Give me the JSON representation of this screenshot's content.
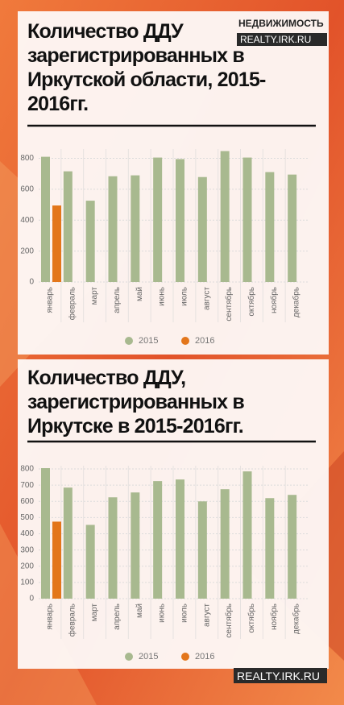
{
  "brand": {
    "name": "НЕДВИЖИМОСТЬ",
    "url": "REALTY.IRK.RU"
  },
  "footer": "REALTY.IRK.RU",
  "chart_data": [
    {
      "type": "bar",
      "title": "Количество ДДУ зарегистрированных в Иркутской области, 2015-2016гг.",
      "categories": [
        "январь",
        "февраль",
        "март",
        "апрель",
        "май",
        "июнь",
        "июль",
        "август",
        "сентябрь",
        "октябрь",
        "ноябрь",
        "декабрь"
      ],
      "series": [
        {
          "name": "2015",
          "color": "#a8b98f",
          "values": [
            810,
            716,
            526,
            684,
            690,
            805,
            795,
            679,
            847,
            805,
            711,
            695
          ]
        },
        {
          "name": "2016",
          "color": "#e3761b",
          "values": [
            495,
            null,
            null,
            null,
            null,
            null,
            null,
            null,
            null,
            null,
            null,
            null
          ]
        }
      ],
      "ylim": [
        0,
        860
      ],
      "yticks": [
        0,
        200,
        400,
        600,
        800
      ],
      "grid": true,
      "legend": "bottom"
    },
    {
      "type": "bar",
      "title": "Количество ДДУ, зарегистрированных в Иркутске в 2015-2016гг.",
      "categories": [
        "январь",
        "февраль",
        "март",
        "апрель",
        "май",
        "июнь",
        "июль",
        "август",
        "сентябрь",
        "октябрь",
        "ноябрь",
        "декабрь"
      ],
      "series": [
        {
          "name": "2015",
          "color": "#a8b98f",
          "values": [
            805,
            685,
            455,
            625,
            655,
            725,
            735,
            600,
            675,
            785,
            620,
            640
          ]
        },
        {
          "name": "2016",
          "color": "#e3761b",
          "values": [
            475,
            null,
            null,
            null,
            null,
            null,
            null,
            null,
            null,
            null,
            null,
            null
          ]
        }
      ],
      "ylim": [
        0,
        820
      ],
      "yticks": [
        0,
        100,
        200,
        300,
        400,
        500,
        600,
        700,
        800
      ],
      "grid": true,
      "legend": "bottom"
    }
  ]
}
